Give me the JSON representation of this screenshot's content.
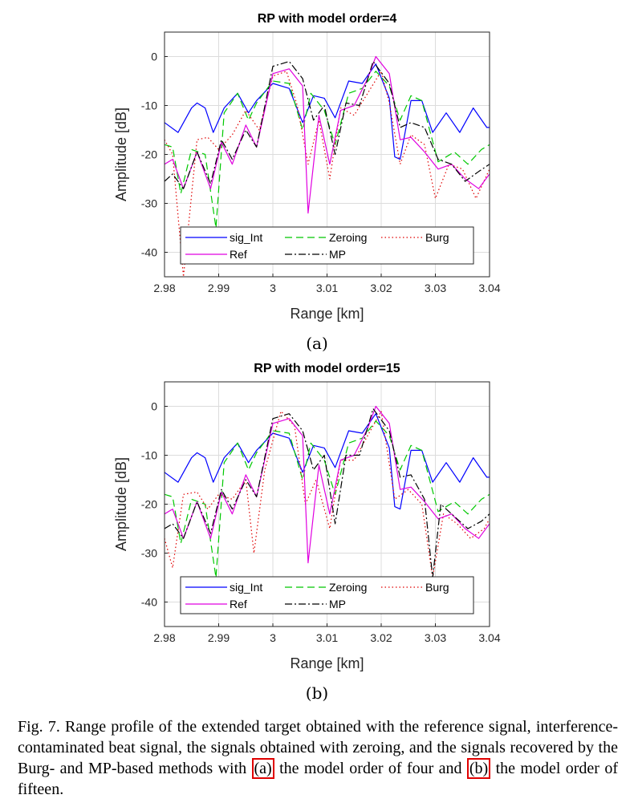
{
  "figures": [
    {
      "sub_label": "(a)",
      "chart_data": {
        "type": "line",
        "title": "RP with model order=4",
        "xlabel": "Range [km]",
        "ylabel": "Amplitude [dB]",
        "xlim": [
          2.98,
          3.04
        ],
        "ylim": [
          -45,
          5
        ],
        "xticks": [
          2.98,
          2.99,
          3.0,
          3.01,
          3.02,
          3.03,
          3.04
        ],
        "xtick_labels": [
          "2.98",
          "2.99",
          "3",
          "3.01",
          "3.02",
          "3.03",
          "3.04"
        ],
        "yticks": [
          0,
          -10,
          -20,
          -30,
          -40
        ],
        "ytick_labels": [
          "0",
          "-10",
          "-20",
          "-30",
          "-40"
        ],
        "grid": true,
        "legend_position": "bottom-left",
        "series": [
          {
            "name": "sig_Int",
            "color": "#0000ff",
            "style": "solid",
            "x": [
              2.98,
              2.9825,
              2.985,
              2.986,
              2.9875,
              2.989,
              2.991,
              2.9935,
              2.9955,
              2.997,
              3.0,
              3.003,
              3.0055,
              3.0075,
              3.0095,
              3.0115,
              3.014,
              3.0165,
              3.019,
              3.0215,
              3.0225,
              3.0235,
              3.0255,
              3.0275,
              3.0295,
              3.032,
              3.0345,
              3.037,
              3.0395,
              3.04
            ],
            "y": [
              -13.5,
              -15.5,
              -10.5,
              -9.5,
              -10.5,
              -15.5,
              -10.5,
              -7.5,
              -11.5,
              -9,
              -5.5,
              -6.5,
              -13.5,
              -8,
              -8.5,
              -12.5,
              -5,
              -5.5,
              -1.5,
              -8.5,
              -20.5,
              -21,
              -9,
              -9,
              -15.5,
              -11.5,
              -15.5,
              -10.5,
              -14.5,
              -14.5
            ]
          },
          {
            "name": "Zeroing",
            "color": "#00c800",
            "style": "dashed",
            "x": [
              2.98,
              2.9815,
              2.983,
              2.985,
              2.9875,
              2.9895,
              2.991,
              2.9935,
              2.9955,
              2.997,
              3.0,
              3.003,
              3.0055,
              3.007,
              3.0095,
              3.0115,
              3.014,
              3.0165,
              3.019,
              3.0215,
              3.0235,
              3.0255,
              3.0275,
              3.0305,
              3.0335,
              3.036,
              3.0385,
              3.04
            ],
            "y": [
              -18,
              -18.5,
              -28,
              -19,
              -20,
              -35,
              -11.5,
              -7.5,
              -13,
              -9.5,
              -5,
              -5.5,
              -15,
              -7.5,
              -11,
              -18,
              -7.5,
              -6.5,
              -3,
              -6,
              -13,
              -8,
              -9,
              -21.5,
              -19.5,
              -22,
              -19,
              -18
            ]
          },
          {
            "name": "Burg",
            "color": "#e00000",
            "style": "dotted",
            "x": [
              2.98,
              2.9815,
              2.9835,
              2.986,
              2.988,
              2.99,
              2.9925,
              2.995,
              2.9975,
              3.0,
              3.0025,
              3.0045,
              3.0065,
              3.0085,
              3.0105,
              3.0125,
              3.015,
              3.0175,
              3.02,
              3.0215,
              3.0235,
              3.0255,
              3.028,
              3.03,
              3.0325,
              3.035,
              3.0375,
              3.04
            ],
            "y": [
              -17,
              -20,
              -45,
              -17,
              -16.5,
              -19,
              -16,
              -11,
              -15,
              -4,
              -3,
              -10,
              -22,
              -13,
              -25,
              -10.5,
              -12,
              -7.5,
              -3,
              -9.5,
              -22,
              -16,
              -18,
              -29,
              -22,
              -23,
              -29,
              -23
            ]
          },
          {
            "name": "Ref",
            "color": "#e000e0",
            "style": "solid",
            "x": [
              2.98,
              2.9815,
              2.9835,
              2.986,
              2.9885,
              2.9905,
              2.9925,
              2.995,
              2.997,
              3.0,
              3.003,
              3.0055,
              3.0065,
              3.0085,
              3.0105,
              3.0125,
              3.015,
              3.0175,
              3.019,
              3.0215,
              3.0235,
              3.0255,
              3.028,
              3.0305,
              3.033,
              3.0355,
              3.038,
              3.04
            ],
            "y": [
              -22,
              -21,
              -27,
              -19.5,
              -27,
              -17.5,
              -22,
              -14,
              -18.5,
              -3.5,
              -2.5,
              -6,
              -32,
              -12,
              -22,
              -11,
              -10,
              -4.5,
              0,
              -3.5,
              -17,
              -16.5,
              -19.5,
              -23,
              -22,
              -25,
              -27,
              -24
            ]
          },
          {
            "name": "MP",
            "color": "#000000",
            "style": "dashdot",
            "x": [
              2.98,
              2.9815,
              2.9835,
              2.986,
              2.9885,
              2.9905,
              2.9925,
              2.995,
              2.997,
              3.0,
              3.003,
              3.0055,
              3.0075,
              3.0095,
              3.0115,
              3.0135,
              3.016,
              3.0185,
              3.0215,
              3.0235,
              3.0255,
              3.028,
              3.0305,
              3.033,
              3.0355,
              3.038,
              3.04
            ],
            "y": [
              -25.5,
              -24,
              -27,
              -19.5,
              -26,
              -17,
              -21,
              -15,
              -18.5,
              -2,
              -1,
              -4.5,
              -13,
              -10,
              -20,
              -9.5,
              -10,
              -1,
              -5.5,
              -14.5,
              -13.5,
              -14.5,
              -21,
              -22,
              -25.5,
              -23.5,
              -22
            ]
          }
        ]
      }
    },
    {
      "sub_label": "(b)",
      "chart_data": {
        "type": "line",
        "title": "RP with model order=15",
        "xlabel": "Range [km]",
        "ylabel": "Amplitude [dB]",
        "xlim": [
          2.98,
          3.04
        ],
        "ylim": [
          -45,
          5
        ],
        "xticks": [
          2.98,
          2.99,
          3.0,
          3.01,
          3.02,
          3.03,
          3.04
        ],
        "xtick_labels": [
          "2.98",
          "2.99",
          "3",
          "3.01",
          "3.02",
          "3.03",
          "3.04"
        ],
        "yticks": [
          0,
          -10,
          -20,
          -30,
          -40
        ],
        "ytick_labels": [
          "0",
          "-10",
          "-20",
          "-30",
          "-40"
        ],
        "grid": true,
        "legend_position": "bottom-left",
        "series": [
          {
            "name": "sig_Int",
            "color": "#0000ff",
            "style": "solid",
            "x": [
              2.98,
              2.9825,
              2.985,
              2.986,
              2.9875,
              2.989,
              2.991,
              2.9935,
              2.9955,
              2.997,
              3.0,
              3.003,
              3.0055,
              3.0075,
              3.0095,
              3.0115,
              3.014,
              3.0165,
              3.019,
              3.0215,
              3.0225,
              3.0235,
              3.0255,
              3.0275,
              3.0295,
              3.032,
              3.0345,
              3.037,
              3.0395,
              3.04
            ],
            "y": [
              -13.5,
              -15.5,
              -10.5,
              -9.5,
              -10.5,
              -15.5,
              -10.5,
              -7.5,
              -11.5,
              -9,
              -5.5,
              -6.5,
              -13.5,
              -8,
              -8.5,
              -12.5,
              -5,
              -5.5,
              -1.5,
              -8.5,
              -20.5,
              -21,
              -9,
              -9,
              -15.5,
              -11.5,
              -15.5,
              -10.5,
              -14.5,
              -14.5
            ]
          },
          {
            "name": "Zeroing",
            "color": "#00c800",
            "style": "dashed",
            "x": [
              2.98,
              2.9815,
              2.983,
              2.985,
              2.9875,
              2.9895,
              2.991,
              2.9935,
              2.9955,
              2.997,
              3.0,
              3.003,
              3.0055,
              3.007,
              3.0095,
              3.0115,
              3.014,
              3.0165,
              3.019,
              3.0215,
              3.0235,
              3.0255,
              3.0275,
              3.0305,
              3.0335,
              3.036,
              3.0385,
              3.04
            ],
            "y": [
              -18,
              -18.5,
              -28,
              -19,
              -20,
              -35,
              -11.5,
              -7.5,
              -13,
              -9.5,
              -5,
              -5.5,
              -15,
              -7.5,
              -11,
              -18,
              -7.5,
              -6.5,
              -3,
              -6,
              -13,
              -8,
              -9,
              -21.5,
              -19.5,
              -22,
              -19,
              -18
            ]
          },
          {
            "name": "Burg",
            "color": "#e00000",
            "style": "dotted",
            "x": [
              2.98,
              2.9815,
              2.9835,
              2.986,
              2.988,
              2.99,
              2.9925,
              2.995,
              2.9965,
              2.9985,
              3.0015,
              3.004,
              3.006,
              3.008,
              3.0105,
              3.0125,
              3.015,
              3.0175,
              3.02,
              3.0225,
              3.025,
              3.0275,
              3.0295,
              3.0315,
              3.034,
              3.0365,
              3.039,
              3.04
            ],
            "y": [
              -27,
              -33,
              -18,
              -17.5,
              -21,
              -18,
              -19,
              -15,
              -30,
              -13,
              -1,
              -4,
              -20,
              -15,
              -25,
              -11,
              -11,
              -6,
              -1,
              -19,
              -17,
              -20,
              -35,
              -22,
              -24,
              -27,
              -25,
              -23
            ]
          },
          {
            "name": "Ref",
            "color": "#e000e0",
            "style": "solid",
            "x": [
              2.98,
              2.9815,
              2.9835,
              2.986,
              2.9885,
              2.9905,
              2.9925,
              2.995,
              2.997,
              3.0,
              3.003,
              3.0055,
              3.0065,
              3.0085,
              3.0105,
              3.0125,
              3.015,
              3.0175,
              3.019,
              3.0215,
              3.0235,
              3.0255,
              3.028,
              3.0305,
              3.033,
              3.0355,
              3.038,
              3.04
            ],
            "y": [
              -22,
              -21,
              -27,
              -19.5,
              -27,
              -17.5,
              -22,
              -14,
              -18.5,
              -3.5,
              -2.5,
              -6,
              -32,
              -12,
              -22,
              -11,
              -10,
              -4.5,
              0,
              -3.5,
              -17,
              -16.5,
              -19.5,
              -23,
              -22,
              -25,
              -27,
              -24
            ]
          },
          {
            "name": "MP",
            "color": "#000000",
            "style": "dashdot",
            "x": [
              2.98,
              2.9815,
              2.9835,
              2.986,
              2.9885,
              2.9905,
              2.9925,
              2.995,
              2.997,
              3.0,
              3.003,
              3.0055,
              3.0075,
              3.0095,
              3.0115,
              3.0135,
              3.016,
              3.0185,
              3.0215,
              3.0235,
              3.0255,
              3.028,
              3.0295,
              3.031,
              3.0335,
              3.036,
              3.0385,
              3.04
            ],
            "y": [
              -25,
              -24,
              -27,
              -19.5,
              -26,
              -17,
              -21,
              -15,
              -18.5,
              -2.5,
              -1.5,
              -5,
              -13,
              -10,
              -24,
              -10,
              -10,
              -0.5,
              -5,
              -14.5,
              -14,
              -19,
              -35,
              -20,
              -22.5,
              -25,
              -23.5,
              -22
            ]
          }
        ]
      }
    }
  ],
  "caption": {
    "text_before": "Fig. 7.  Range profile of the extended target obtained with the reference signal, interference-contaminated beat signal, the signals obtained with zeroing, and the signals recovered by the Burg- and MP-based methods with ",
    "ref_a": "(a)",
    "text_middle": " the model order of four and ",
    "ref_b": "(b)",
    "text_after": " the model order of fifteen."
  }
}
